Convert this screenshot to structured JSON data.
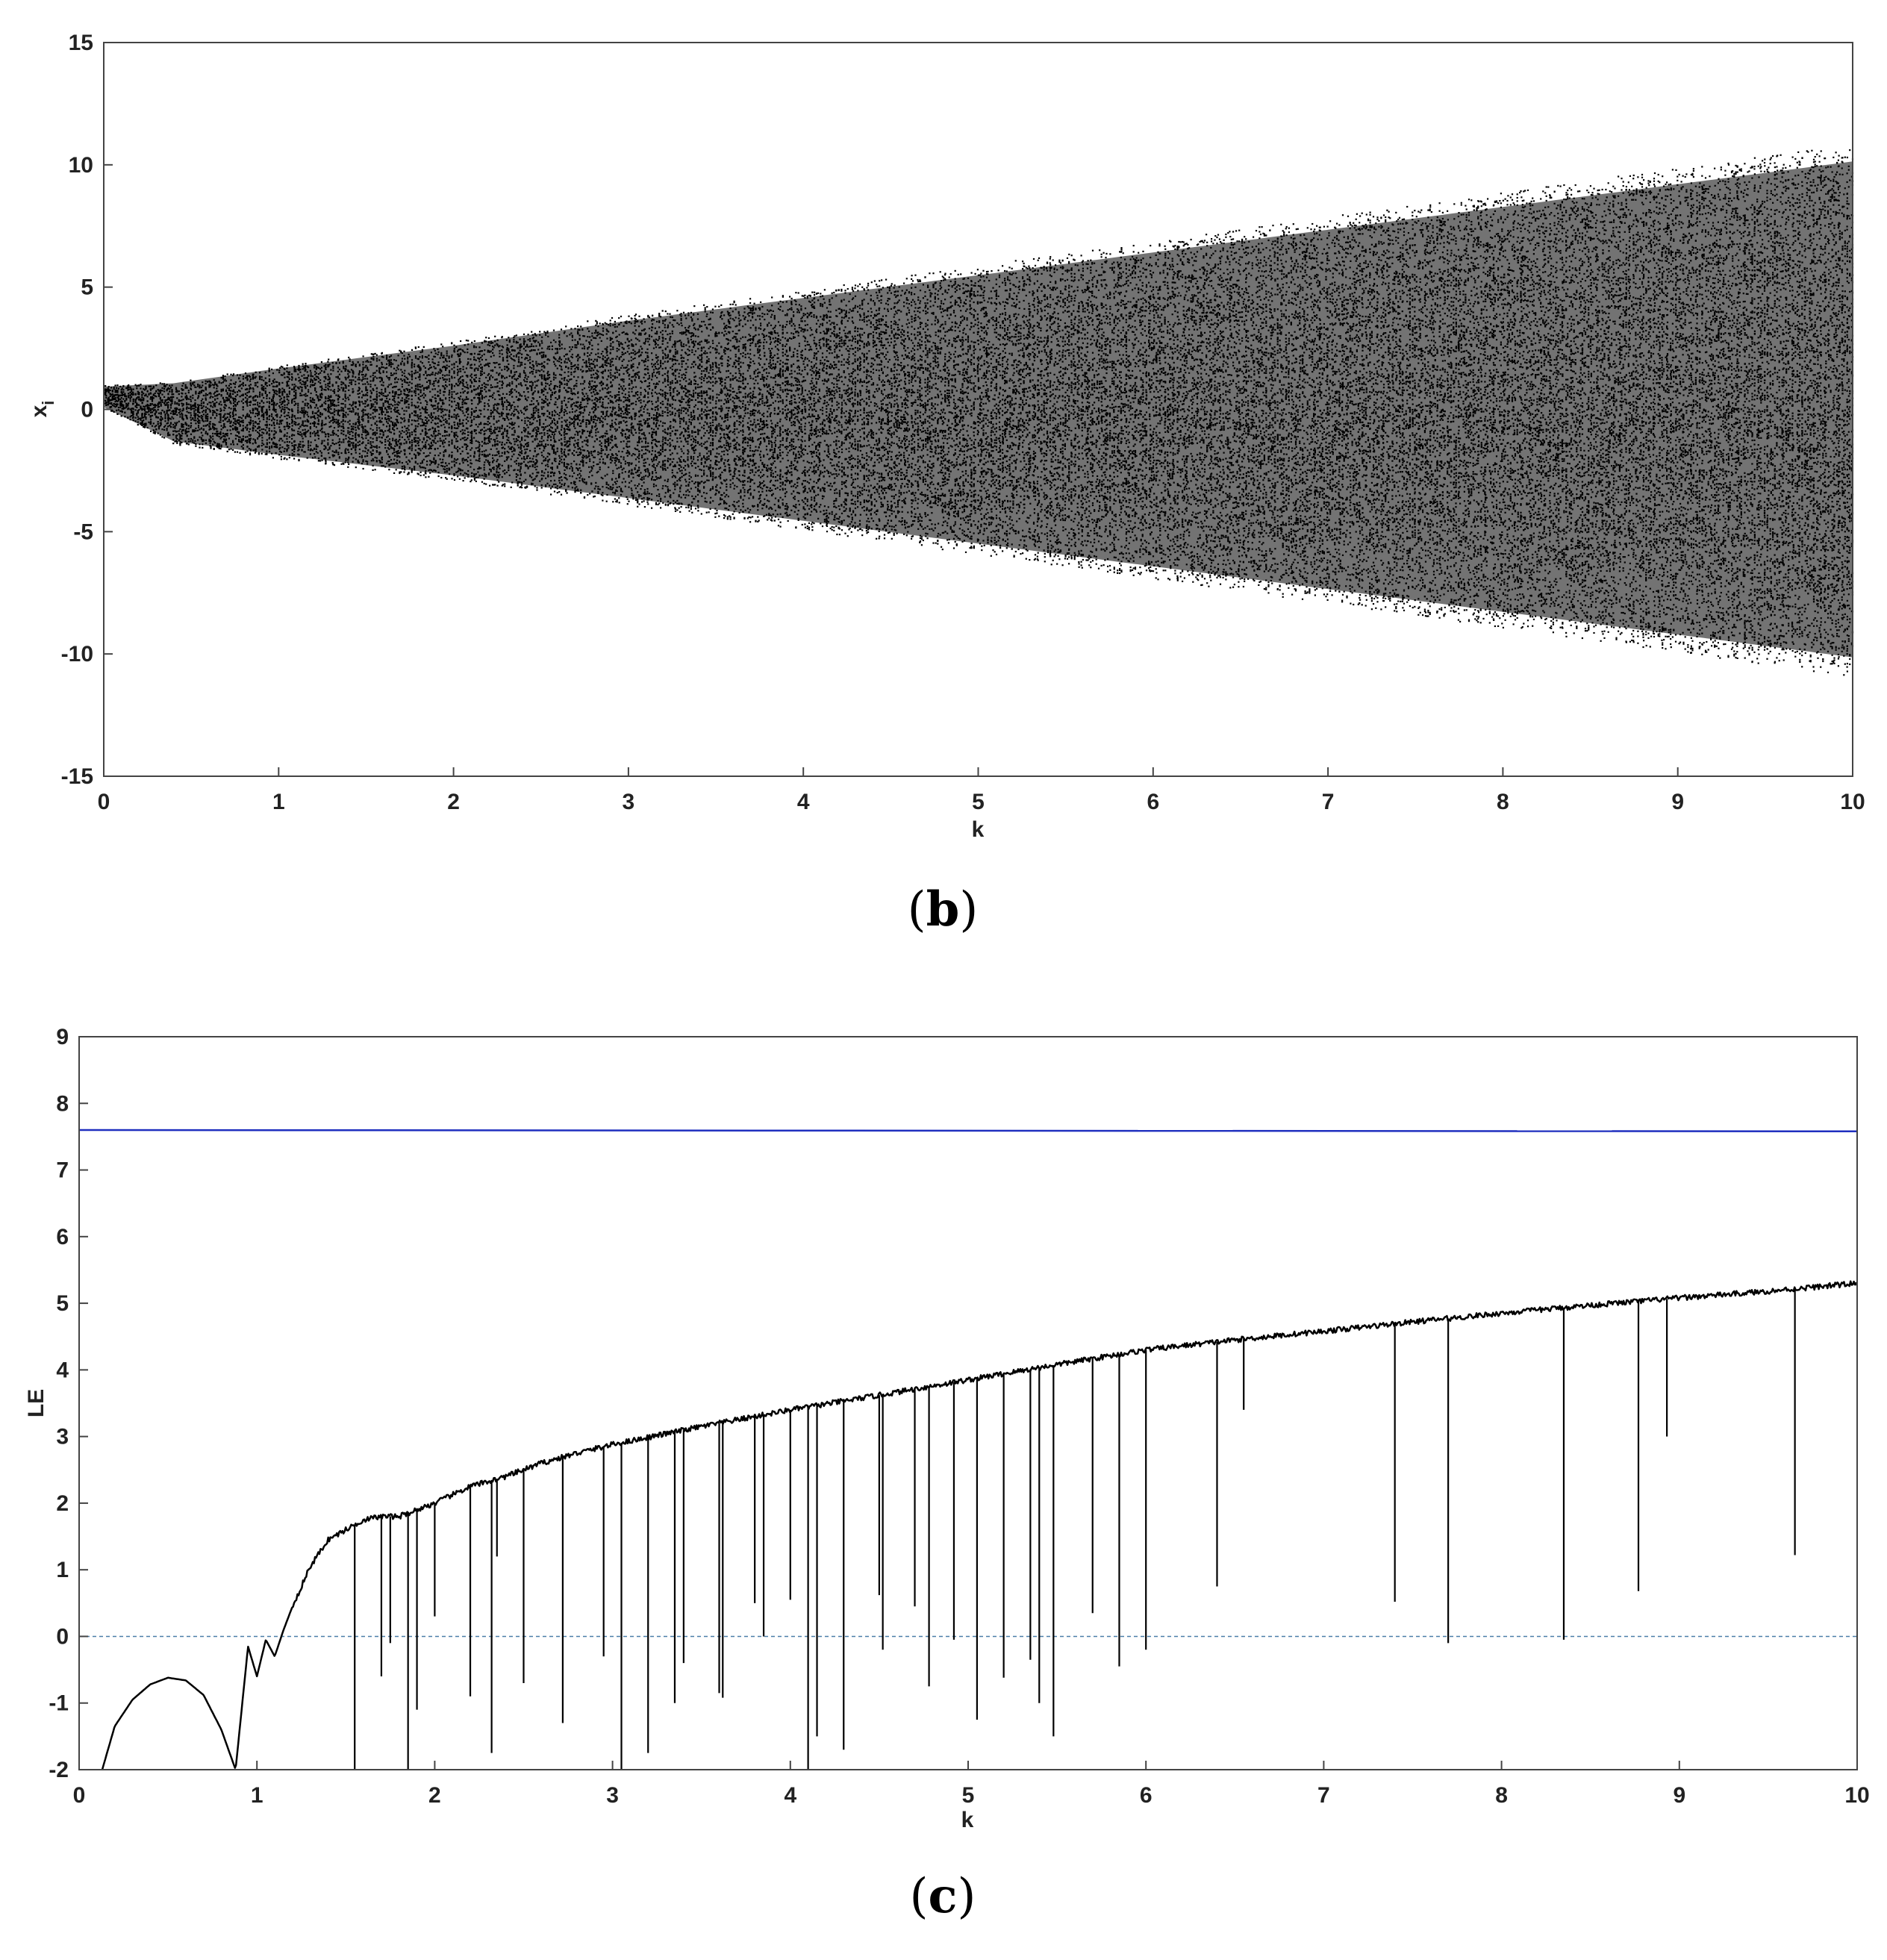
{
  "figure": {
    "panels": [
      "(b)",
      "(c)"
    ]
  },
  "chart_data": [
    {
      "id": "b",
      "type": "scatter",
      "caption": "(b)",
      "caption_letter": "b",
      "xlabel": "k",
      "ylabel": "x",
      "ylabel_subscript": "i",
      "xlim": [
        0,
        10
      ],
      "ylim": [
        -15,
        15
      ],
      "xticks": [
        0,
        1,
        2,
        3,
        4,
        5,
        6,
        7,
        8,
        9,
        10
      ],
      "yticks": [
        -15,
        -10,
        -5,
        0,
        5,
        10,
        15
      ],
      "grid": false,
      "colors": {
        "points": "#000000"
      },
      "envelope": {
        "k": [
          0,
          0.4,
          1,
          2,
          3,
          4,
          5,
          6,
          7,
          8,
          9,
          10
        ],
        "upper": [
          1.0,
          1.15,
          1.8,
          2.8,
          3.9,
          4.9,
          5.9,
          6.9,
          7.9,
          8.9,
          9.9,
          10.9
        ],
        "lower": [
          0.1,
          -1.4,
          -2.0,
          -2.9,
          -3.9,
          -4.9,
          -5.9,
          -6.9,
          -7.9,
          -8.9,
          -9.9,
          -10.9
        ]
      }
    },
    {
      "id": "c",
      "type": "line",
      "caption": "(c)",
      "caption_letter": "c",
      "xlabel": "k",
      "ylabel": "LE",
      "xlim": [
        0,
        10
      ],
      "ylim": [
        -2,
        9
      ],
      "xticks": [
        0,
        1,
        2,
        3,
        4,
        5,
        6,
        7,
        8,
        9,
        10
      ],
      "yticks": [
        -2,
        -1,
        0,
        1,
        2,
        3,
        4,
        5,
        6,
        7,
        8,
        9
      ],
      "grid": false,
      "colors": {
        "le1": "#1f2fbf",
        "le2": "#000000",
        "zero": "#4a7fa8"
      },
      "reference_line": {
        "y": 0,
        "style": "dashed"
      },
      "series": [
        {
          "k": [
            0,
            10
          ],
          "values": [
            7.6,
            7.58
          ]
        },
        {
          "k": [
            0.13,
            0.2,
            0.3,
            0.4,
            0.5,
            0.6,
            0.7,
            0.8,
            0.88,
            0.95,
            1.0,
            1.05,
            1.1,
            1.15,
            1.2,
            1.3,
            1.4,
            1.5,
            1.6,
            1.7,
            1.8,
            2.0,
            2.2,
            2.4,
            2.6,
            2.8,
            3.0,
            3.5,
            4.0,
            4.5,
            5.0,
            5.5,
            6.0,
            6.5,
            7.0,
            7.5,
            8.0,
            8.5,
            9.0,
            9.5,
            10.0
          ],
          "values": [
            -2.0,
            -1.35,
            -0.95,
            -0.72,
            -0.62,
            -0.66,
            -0.88,
            -1.4,
            -2.0,
            -0.15,
            -0.6,
            -0.05,
            -0.3,
            0.1,
            0.45,
            1.05,
            1.45,
            1.6,
            1.75,
            1.8,
            1.8,
            2.0,
            2.25,
            2.4,
            2.6,
            2.75,
            2.88,
            3.15,
            3.4,
            3.62,
            3.85,
            4.08,
            4.3,
            4.45,
            4.58,
            4.72,
            4.85,
            4.97,
            5.08,
            5.18,
            5.3
          ]
        }
      ],
      "dips": {
        "k": [
          1.55,
          1.7,
          1.75,
          1.85,
          1.9,
          2.0,
          2.2,
          2.32,
          2.35,
          2.5,
          2.72,
          2.95,
          3.05,
          3.2,
          3.35,
          3.4,
          3.6,
          3.62,
          3.8,
          3.85,
          4.0,
          4.1,
          4.15,
          4.3,
          4.5,
          4.52,
          4.7,
          4.78,
          4.92,
          5.05,
          5.2,
          5.35,
          5.4,
          5.48,
          5.7,
          5.85,
          6.0,
          6.4,
          6.55,
          7.4,
          7.7,
          8.35,
          8.77,
          8.93,
          9.65
        ],
        "min": [
          -2.0,
          -0.6,
          -0.1,
          -2.0,
          -1.1,
          0.3,
          -0.9,
          -1.75,
          1.2,
          -0.7,
          -1.3,
          -0.3,
          -2.0,
          -1.75,
          -1.0,
          -0.4,
          -0.85,
          -0.92,
          0.5,
          0.0,
          0.55,
          -2.0,
          -1.5,
          -1.7,
          0.62,
          -0.2,
          0.45,
          -0.75,
          -0.05,
          -1.25,
          -0.62,
          -0.35,
          -1.0,
          -1.5,
          0.35,
          -0.45,
          -0.2,
          0.75,
          3.4,
          0.52,
          -0.1,
          -0.05,
          0.68,
          3.0,
          1.22
        ]
      }
    }
  ]
}
